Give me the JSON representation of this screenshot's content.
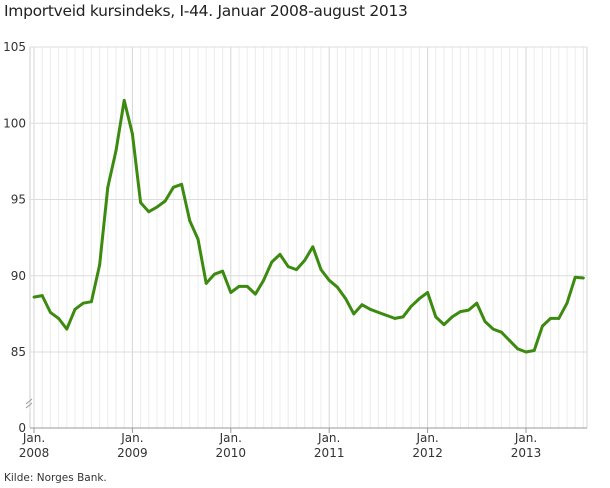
{
  "chart_data": {
    "type": "line",
    "title": "Importveid kursindeks, I-44. Januar 2008-august 2013",
    "source": "Kilde: Norges Bank.",
    "xlabel": "",
    "ylabel": "",
    "ylim": [
      85,
      105
    ],
    "y_axis_break": true,
    "y_ticks": [
      0,
      85,
      90,
      95,
      100,
      105
    ],
    "x_ticks": [
      {
        "month": "Jan.",
        "year": "2008",
        "index": 0
      },
      {
        "month": "Jan.",
        "year": "2009",
        "index": 12
      },
      {
        "month": "Jan.",
        "year": "2010",
        "index": 24
      },
      {
        "month": "Jan.",
        "year": "2011",
        "index": 36
      },
      {
        "month": "Jan.",
        "year": "2012",
        "index": 48
      },
      {
        "month": "Jan.",
        "year": "2013",
        "index": 60
      }
    ],
    "grid": true,
    "series": [
      {
        "name": "Importveid kursindeks",
        "color": "#3d8a10",
        "start": "2008-01",
        "values": [
          88.6,
          88.7,
          87.6,
          87.2,
          86.5,
          87.8,
          88.2,
          88.3,
          90.7,
          95.8,
          98.2,
          101.5,
          99.3,
          94.8,
          94.2,
          94.5,
          94.9,
          95.8,
          96.0,
          93.6,
          92.4,
          89.5,
          90.1,
          90.3,
          88.9,
          89.3,
          89.3,
          88.8,
          89.7,
          90.9,
          91.4,
          90.6,
          90.4,
          91.0,
          91.9,
          90.4,
          89.7,
          89.25,
          88.5,
          87.5,
          88.1,
          87.8,
          87.6,
          87.4,
          87.2,
          87.3,
          88.0,
          88.5,
          88.9,
          87.3,
          86.8,
          87.3,
          87.65,
          87.75,
          88.2,
          87.0,
          86.5,
          86.3,
          85.75,
          85.2,
          85.0,
          85.1,
          86.7,
          87.2,
          87.2,
          88.2,
          89.9,
          89.85
        ]
      }
    ]
  }
}
